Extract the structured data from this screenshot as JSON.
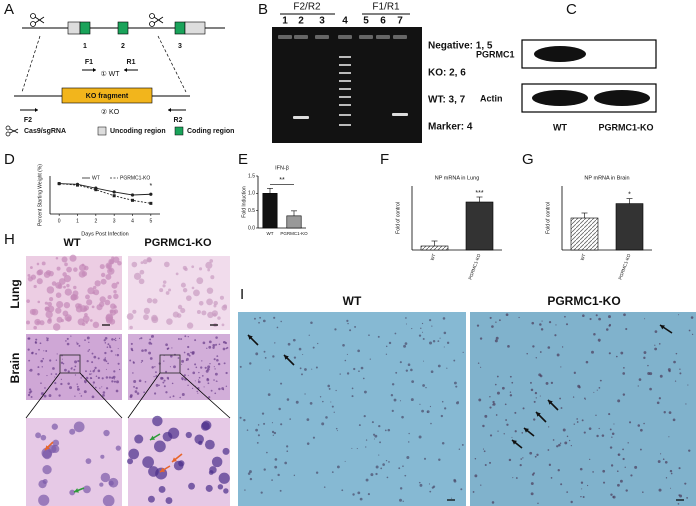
{
  "panel_labels": [
    "A",
    "B",
    "C",
    "D",
    "E",
    "F",
    "G",
    "H",
    "I"
  ],
  "panel_a": {
    "exon_labels": [
      "1",
      "2",
      "3"
    ],
    "primers": [
      "F1",
      "R1",
      "F2",
      "R2"
    ],
    "alleles": [
      "① WT",
      "② KO"
    ],
    "fragment": "KO fragment",
    "legend": [
      "Cas9/sgRNA",
      "Uncoding region",
      "Coding region"
    ]
  },
  "panel_b": {
    "groups": [
      "F2/R2",
      "F1/R1"
    ],
    "lanes": [
      "1",
      "2",
      "3",
      "4",
      "5",
      "6",
      "7"
    ],
    "key": [
      "Negative: 1, 5",
      "KO: 2, 6",
      "WT: 3, 7",
      "Marker: 4"
    ]
  },
  "panel_c": {
    "proteins": [
      "PGRMC1",
      "Actin"
    ],
    "samples": [
      "WT",
      "PGRMC1-KO"
    ]
  },
  "panel_d": {
    "type": "line",
    "ylabel": "Percent Starting Weight (%)",
    "xlabel": "Days Post Infection",
    "x": [
      0,
      1,
      2,
      3,
      4,
      5
    ],
    "xticks": [
      0,
      1,
      2,
      3,
      4,
      5
    ],
    "xlim": [
      -0.5,
      5.5
    ],
    "ylim": [
      60,
      110
    ],
    "series": [
      {
        "name": "WT",
        "color": "#222222",
        "values": [
          100,
          99,
          94,
          89,
          85,
          86
        ]
      },
      {
        "name": "PGRMC1-KO",
        "color": "#222222",
        "values": [
          100,
          98,
          92,
          84,
          78,
          74
        ]
      }
    ],
    "annotation": "*"
  },
  "panel_e": {
    "type": "bar",
    "title": "IFN-β",
    "ylabel": "Fold Induction",
    "categories": [
      "WT",
      "PGRMC1-KO"
    ],
    "values": [
      1.0,
      0.35
    ],
    "colors": [
      "#111111",
      "#999999"
    ],
    "ylim": [
      0,
      1.5
    ],
    "yticks": [
      {
        "value": 0,
        "label": "0.0"
      },
      {
        "value": 0.5,
        "label": "0.5"
      },
      {
        "value": 1,
        "label": "1.0"
      },
      {
        "value": 1.5,
        "label": "1.5"
      }
    ],
    "annotation": "**"
  },
  "panel_f": {
    "type": "bar",
    "title": "NP mRNA in Lung",
    "ylabel": "Fold of control",
    "categories": [
      "WT",
      "PGRMC1-KO"
    ],
    "values": [
      1,
      12
    ],
    "colors": [
      "#cccccc",
      "#333333"
    ],
    "ylim": [
      0,
      16
    ],
    "annotation": "***"
  },
  "panel_g": {
    "type": "bar",
    "title": "NP mRNA in Brain",
    "ylabel": "Fold of control",
    "categories": [
      "WT",
      "PGRMC1-KO"
    ],
    "values": [
      1,
      1.45
    ],
    "colors": [
      "#cccccc",
      "#333333"
    ],
    "ylim": [
      0,
      2
    ],
    "annotation": "*"
  },
  "panel_h": {
    "columns": [
      "WT",
      "PGRMC1-KO"
    ],
    "rows": [
      "Lung",
      "Brain"
    ]
  },
  "panel_i": {
    "columns": [
      "WT",
      "PGRMC1-KO"
    ]
  }
}
